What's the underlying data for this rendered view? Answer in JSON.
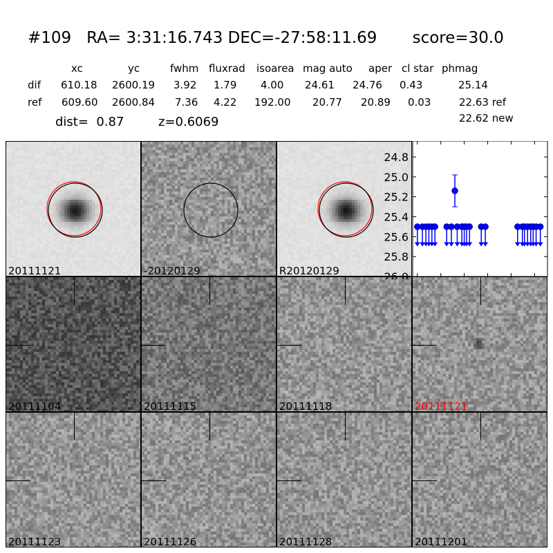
{
  "header": {
    "title": "#109   RA= 3:31:16.743 DEC=-27:58:11.69       score=30.0",
    "columns": [
      "xc",
      "yc",
      "fwhm",
      "fluxrad",
      "isoarea",
      "mag auto",
      "aper",
      "cl star",
      "phmag"
    ],
    "rows": [
      {
        "label": "dif",
        "values": [
          "610.18",
          "2600.19",
          "3.92",
          "1.79",
          "4.00",
          "24.61",
          "24.76",
          "0.43",
          "25.14"
        ]
      },
      {
        "label": "ref",
        "values": [
          "609.60",
          "2600.84",
          "7.36",
          "4.22",
          "192.00",
          "20.77",
          "20.89",
          "0.03",
          "22.63 ref"
        ]
      }
    ],
    "extra_phmag": "22.62 new",
    "dist": "dist=  0.87",
    "z": "z=0.6069"
  },
  "stamps": [
    {
      "label": "20111121",
      "kind": "ref",
      "circles": [
        "red",
        "black"
      ]
    },
    {
      "label": "-20120129",
      "kind": "dif",
      "circles": [
        "black"
      ]
    },
    {
      "label": "R20120129",
      "kind": "ref",
      "circles": [
        "red",
        "black"
      ]
    },
    {
      "label": "20111104",
      "kind": "dark"
    },
    {
      "label": "20111115",
      "kind": "mid"
    },
    {
      "label": "20111118",
      "kind": "light"
    },
    {
      "label": "20111121",
      "kind": "light",
      "highlight": "#ff0000"
    },
    {
      "label": "20111123",
      "kind": "light"
    },
    {
      "label": "20111126",
      "kind": "light"
    },
    {
      "label": "20111128",
      "kind": "light"
    },
    {
      "label": "20111201",
      "kind": "light"
    }
  ],
  "chart_data": {
    "type": "scatter",
    "xlim": [
      -4,
      111
    ],
    "ylim": [
      26.0,
      24.64
    ],
    "y_inverted": true,
    "xticks": [
      0,
      20,
      40,
      60,
      80,
      100
    ],
    "yticks": [
      24.8,
      25.0,
      25.2,
      25.4,
      25.6,
      25.8,
      26.0
    ],
    "color": "#0000ff",
    "detections": [
      {
        "x": 32,
        "y": 25.14,
        "yerr": 0.16
      }
    ],
    "upper_limits": {
      "y": 25.5,
      "x": [
        0,
        4.3,
        7.3,
        9.8,
        12.4,
        15,
        25,
        29,
        34,
        38,
        40,
        42,
        44.5,
        54.5,
        58,
        85.5,
        89.6,
        91.4,
        94,
        96.7,
        98.8,
        101.3,
        104.9
      ]
    }
  }
}
